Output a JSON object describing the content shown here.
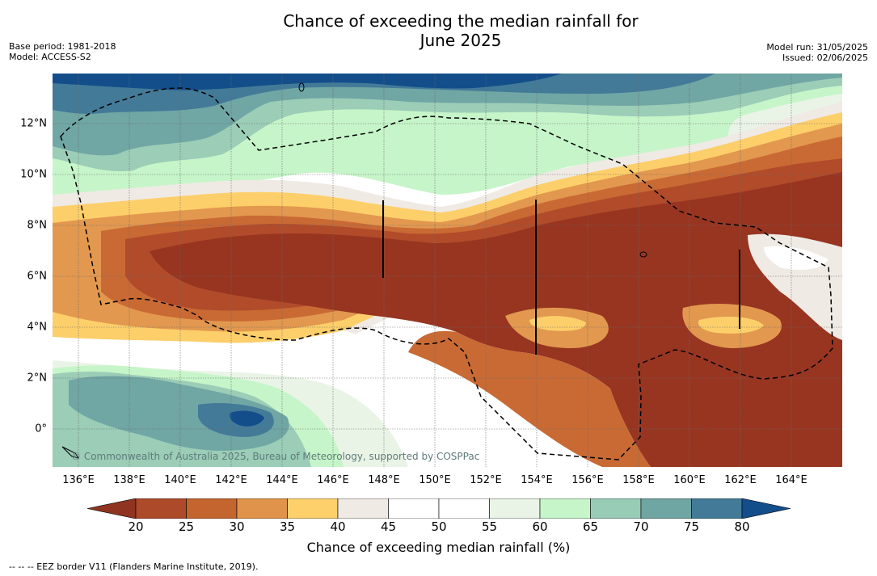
{
  "title_line1": "Chance of exceeding the median rainfall for",
  "title_line2": "June 2025",
  "meta_left": {
    "base_period": "Base period: 1981-2018",
    "model": "Model: ACCESS-S2"
  },
  "meta_right": {
    "model_run": "Model run: 31/05/2025",
    "issued": "Issued: 02/06/2025"
  },
  "x_ticks": [
    "136°E",
    "138°E",
    "140°E",
    "142°E",
    "144°E",
    "146°E",
    "148°E",
    "150°E",
    "152°E",
    "154°E",
    "156°E",
    "158°E",
    "160°E",
    "162°E",
    "164°E"
  ],
  "y_ticks": [
    "12°N",
    "10°N",
    "8°N",
    "6°N",
    "4°N",
    "2°N",
    "0°"
  ],
  "colorbar": {
    "ticks": [
      "20",
      "25",
      "30",
      "35",
      "40",
      "45",
      "50",
      "55",
      "60",
      "65",
      "70",
      "75",
      "80"
    ],
    "colors": [
      "#8f3420",
      "#ad4a2a",
      "#c4652f",
      "#e0934a",
      "#fdd06b",
      "#efeae4",
      "#ffffff",
      "#ffffff",
      "#e9f4e6",
      "#c6f5c9",
      "#99ccb6",
      "#6fa5a3",
      "#437a98",
      "#134e8a"
    ],
    "label": "Chance of exceeding median rainfall (%)"
  },
  "copyright": "© Commonwealth of Australia 2025, Bureau of Meteorology, supported by COSPPac",
  "footnote": "--  --  -- EEZ border V11 (Flanders Marine Institute, 2019).",
  "map_colors": {
    "p20": "#973521",
    "p25": "#b14b2a",
    "p30": "#c96a34",
    "p35": "#e2984f",
    "p40": "#fdcf6a",
    "p45": "#efeae4",
    "p50": "#ffffff",
    "p60": "#e9f4e6",
    "p65": "#c6f5c9",
    "p70": "#9bcdb7",
    "p75": "#70a6a4",
    "p77": "#437a98",
    "p80": "#134e8a"
  }
}
